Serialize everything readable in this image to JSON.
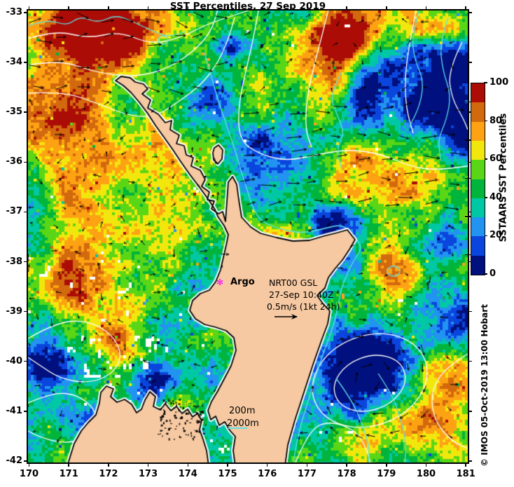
{
  "title": "SST Percentiles, 27 Sep 2019",
  "axes": {
    "lat_ticks": [
      "-33",
      "-34",
      "-35",
      "-36",
      "-37",
      "-38",
      "-39",
      "-40",
      "-41",
      "-42"
    ],
    "lon_ticks": [
      "170",
      "171",
      "172",
      "173",
      "174",
      "175",
      "176",
      "177",
      "178",
      "179",
      "180",
      "181"
    ]
  },
  "colorbar": {
    "label": "SSTAARS SST Percentiles",
    "ticks": [
      "0",
      "20",
      "40",
      "60",
      "80",
      "100"
    ],
    "colors_bottom_to_top": [
      "#00107e",
      "#0a46dd",
      "#2293f0",
      "#00c8a5",
      "#00b43c",
      "#59d616",
      "#f2e70c",
      "#fda313",
      "#d2690e",
      "#ab0d06"
    ]
  },
  "annotations": {
    "argo": {
      "marker_glyph": "✻",
      "marker_color": "#ff00ff",
      "label": "Argo"
    },
    "nrt": {
      "line1": "NRT00 GSL",
      "line2": "27-Sep 10:40Z",
      "line3": "0.5m/s (1kt 24h)"
    },
    "depth_contours": {
      "c200": "200m",
      "c2000": "2000m",
      "line_color": "#5ee0e8"
    },
    "credit": "© IMOS 05-Oct-2019 13:00 Hobart"
  },
  "map": {
    "land_color": "#f6c9a2",
    "coast_color": "#000000",
    "contour_white": "#ffffff",
    "contour_cyan": "#5ee0e8",
    "arrow_color": "#000000"
  }
}
